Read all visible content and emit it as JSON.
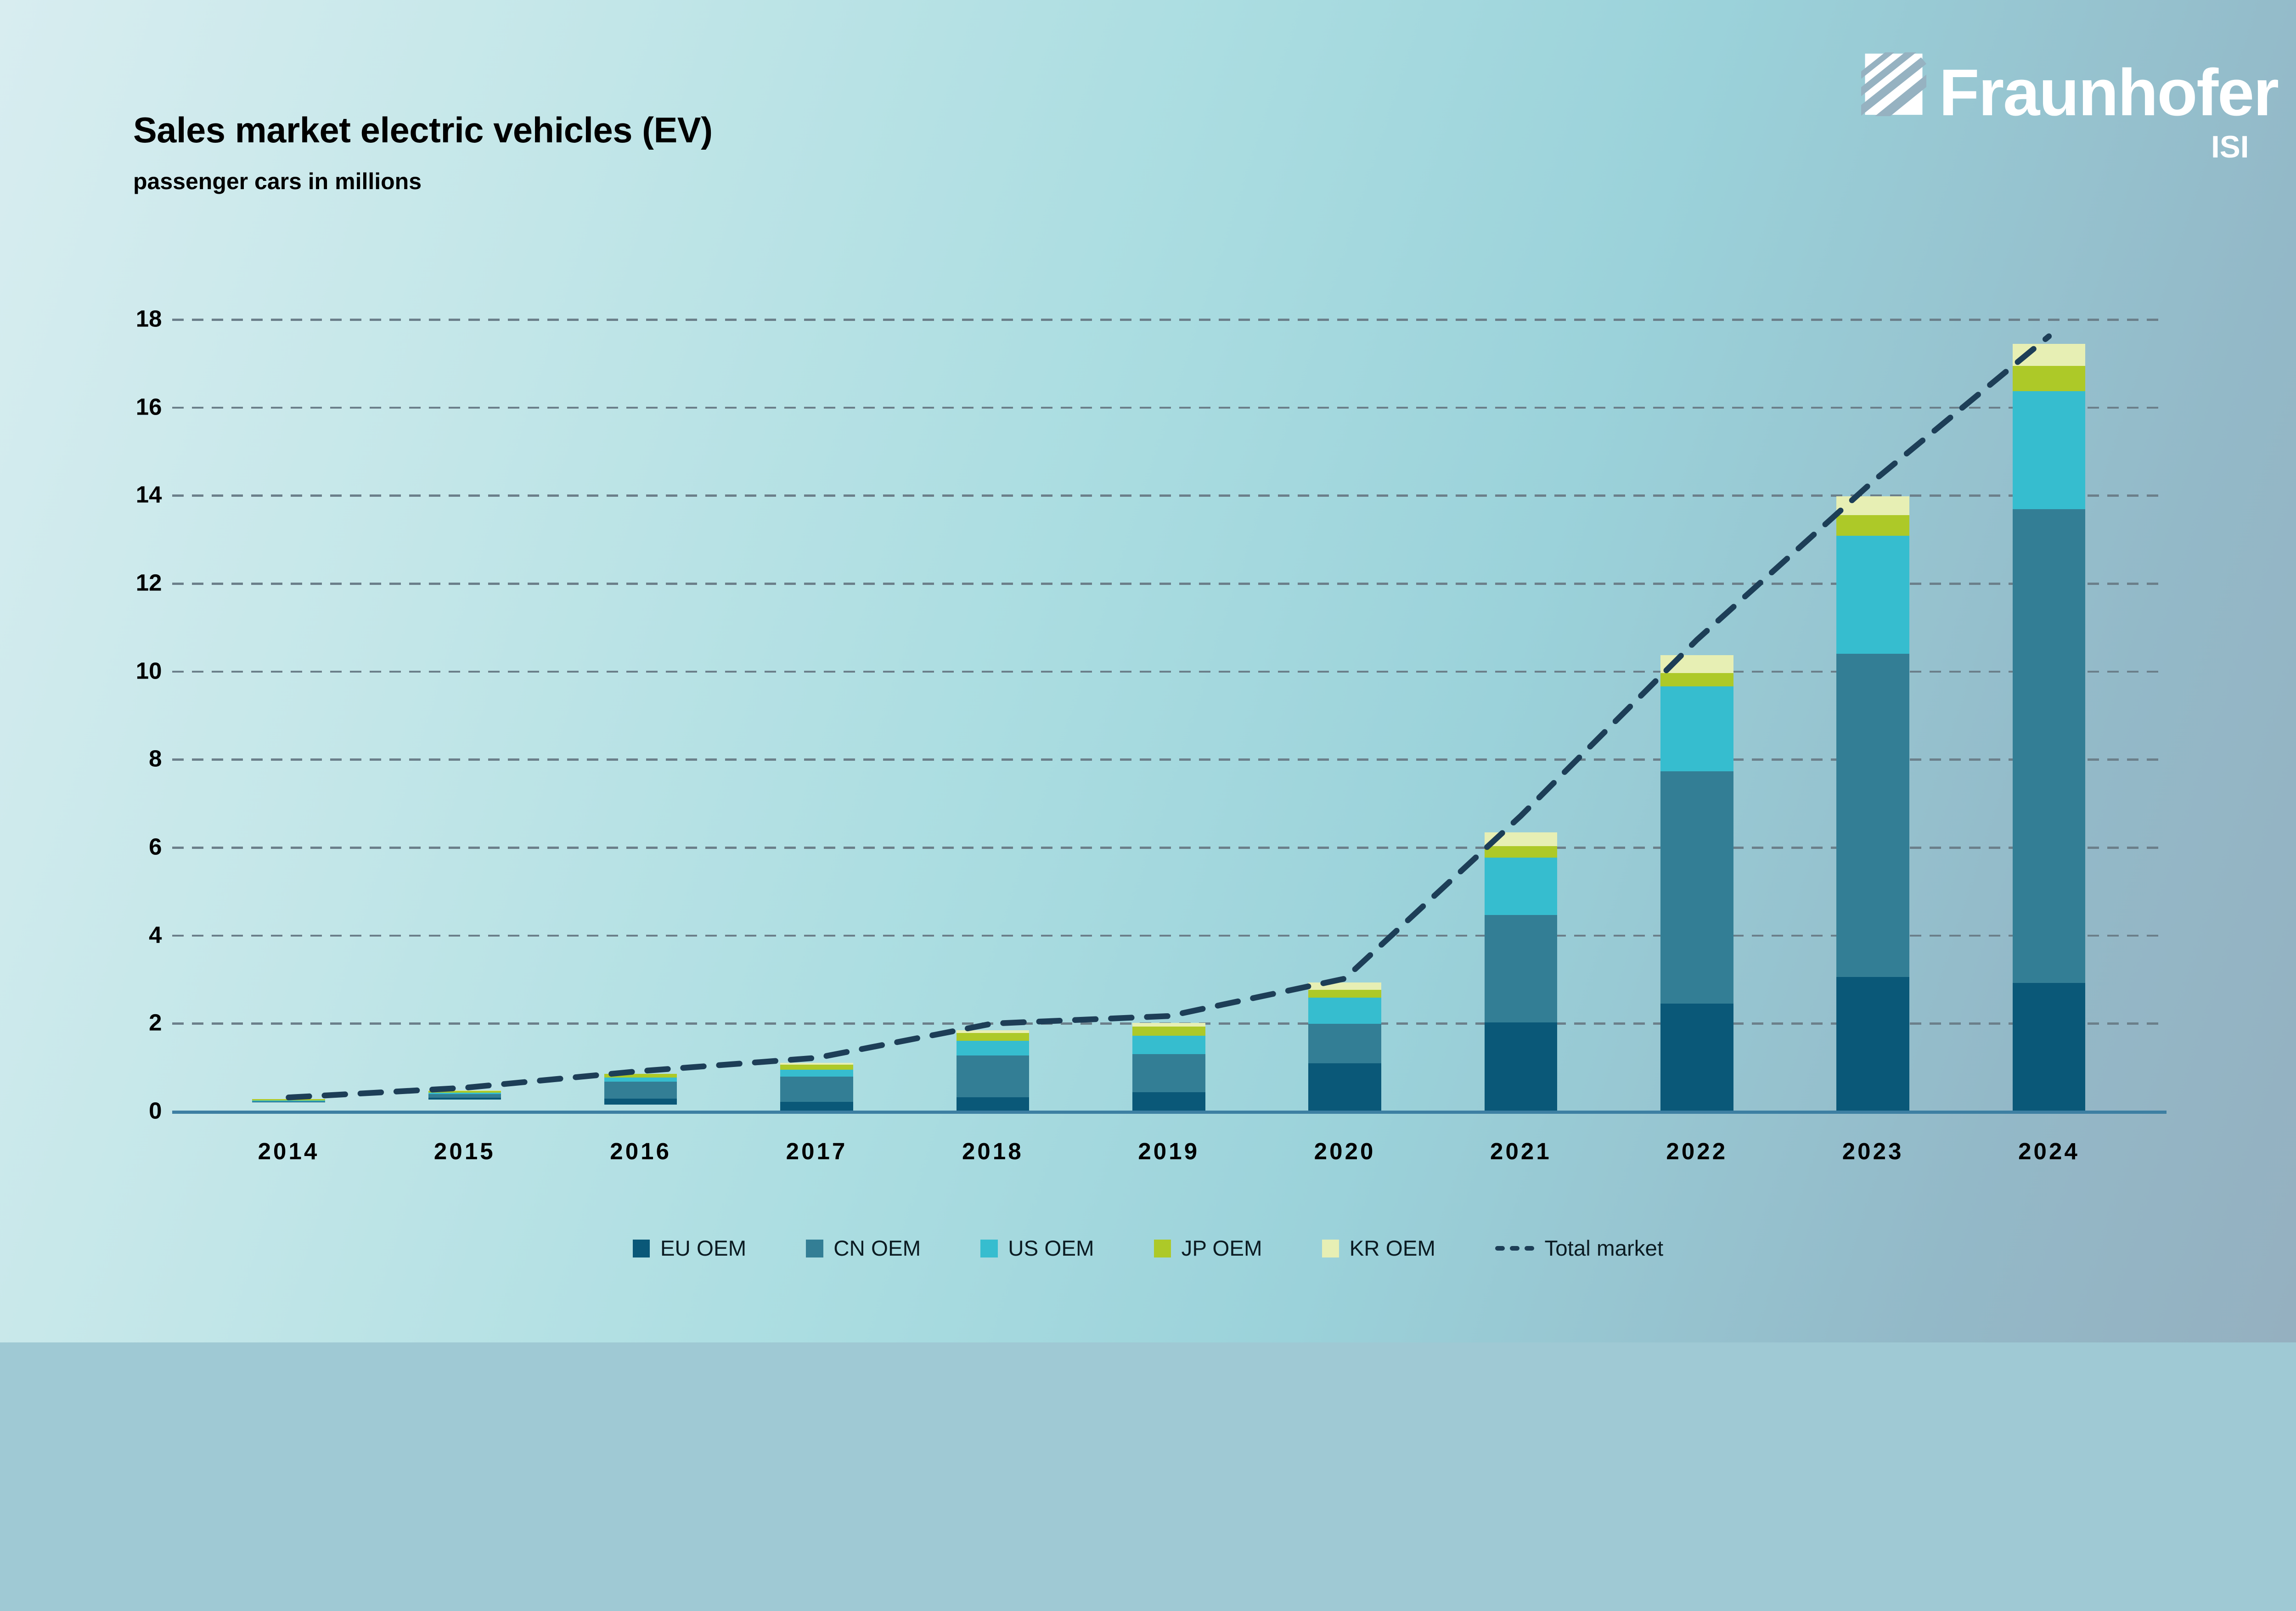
{
  "header": {
    "title": "Sales market electric vehicles (EV)",
    "subtitle": "passenger cars in millions"
  },
  "logo": {
    "brand": "Fraunhofer",
    "unit": "ISI"
  },
  "colors": {
    "eu": "#0a5878",
    "cn": "#337e95",
    "us": "#36bdcf",
    "jp": "#adc928",
    "kr": "#e7efb4",
    "total": "#1d3e57",
    "axis": "#3d7fa2",
    "grid": "#6b7f8a",
    "text": "#000000",
    "logo_text": "#ffffff"
  },
  "axis": {
    "y_label_ticks": [
      0,
      2,
      4,
      6,
      8,
      10,
      12,
      14,
      16,
      18
    ],
    "y_grid_ticks": [
      2,
      4,
      6,
      8,
      10,
      12,
      14,
      16,
      18
    ],
    "y_max": 18
  },
  "legend": {
    "items": [
      {
        "label": "EU OEM",
        "key": "eu",
        "style": "swatch"
      },
      {
        "label": "CN OEM",
        "key": "cn",
        "style": "swatch"
      },
      {
        "label": "US OEM",
        "key": "us",
        "style": "swatch"
      },
      {
        "label": "JP OEM",
        "key": "jp",
        "style": "swatch"
      },
      {
        "label": "KR OEM",
        "key": "kr",
        "style": "swatch"
      },
      {
        "label": "Total market",
        "key": "total",
        "style": "dashed"
      }
    ]
  },
  "chart_data": {
    "type": "bar",
    "stacked": true,
    "title": "Sales market electric vehicles (EV)",
    "subtitle": "passenger cars in millions",
    "categories": [
      "2014",
      "2015",
      "2016",
      "2017",
      "2018",
      "2019",
      "2020",
      "2021",
      "2022",
      "2023",
      "2024"
    ],
    "series": [
      {
        "name": "EU OEM",
        "key": "eu",
        "values": [
          0.02,
          0.1,
          0.17,
          0.2,
          0.3,
          0.42,
          1.08,
          2.0,
          2.43,
          3.04,
          2.9
        ]
      },
      {
        "name": "CN OEM",
        "key": "cn",
        "values": [
          0.03,
          0.18,
          0.45,
          0.57,
          0.95,
          0.87,
          0.89,
          2.45,
          5.28,
          7.34,
          10.77
        ]
      },
      {
        "name": "US OEM",
        "key": "us",
        "values": [
          0.08,
          0.07,
          0.12,
          0.16,
          0.34,
          0.41,
          0.6,
          1.3,
          1.93,
          2.69,
          2.68
        ]
      },
      {
        "name": "JP OEM",
        "key": "jp",
        "values": [
          0.12,
          0.09,
          0.09,
          0.12,
          0.18,
          0.21,
          0.18,
          0.26,
          0.31,
          0.47,
          0.58
        ]
      },
      {
        "name": "KR OEM",
        "key": "kr",
        "values": [
          0.01,
          0.02,
          0.01,
          0.04,
          0.06,
          0.08,
          0.16,
          0.31,
          0.4,
          0.42,
          0.5
        ]
      }
    ],
    "line_series": {
      "name": "Total market",
      "values": [
        0.3,
        0.52,
        0.9,
        1.2,
        1.98,
        2.15,
        3.0,
        6.7,
        10.7,
        14.3,
        17.6
      ]
    },
    "ylabel": "",
    "xlabel": "",
    "ylim": [
      0,
      18
    ],
    "grid": "horizontal-dashed",
    "legend_position": "bottom-center"
  }
}
